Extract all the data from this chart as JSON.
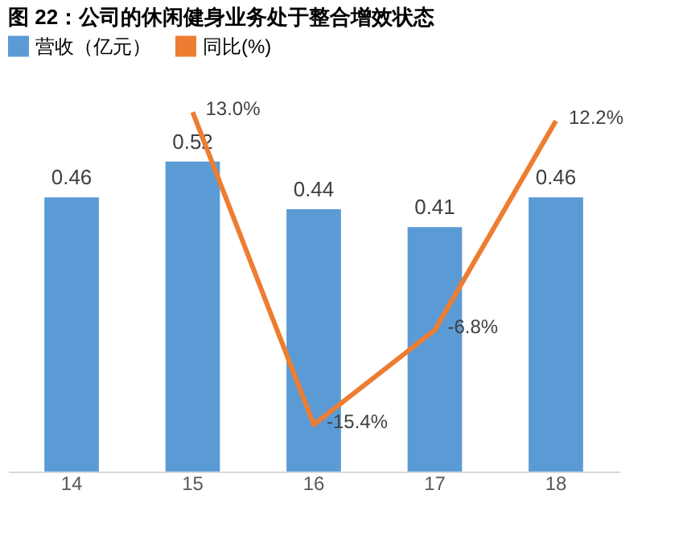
{
  "chart_data": {
    "type": "bar",
    "title": "图 22：公司的休闲健身业务处于整合增效状态",
    "categories": [
      "14",
      "15",
      "16",
      "17",
      "18"
    ],
    "legend": "top",
    "data_labels": true,
    "series": [
      {
        "name": "营收（亿元）",
        "color": "#5b9bd5",
        "values": [
          0.46,
          0.52,
          0.44,
          0.41,
          0.46
        ]
      },
      {
        "name": "同比(%)",
        "type": "line",
        "axis": "y2",
        "color": "#ed7d31",
        "values": [
          null,
          13.0,
          -15.4,
          -6.8,
          12.2
        ],
        "value_labels": [
          null,
          "13.0%",
          "-15.4%",
          "-6.8%",
          "12.2%"
        ]
      }
    ]
  }
}
